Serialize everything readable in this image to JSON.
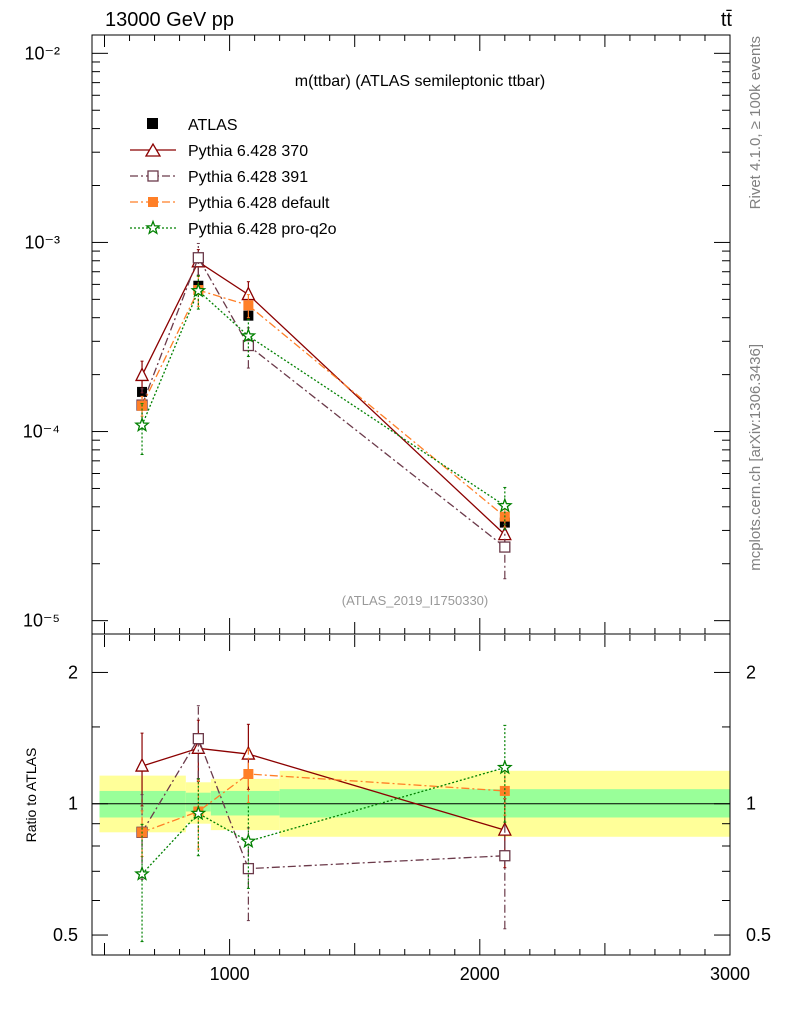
{
  "header": {
    "left": "13000 GeV pp",
    "right": "tt̄"
  },
  "side_labels": {
    "rivet": "Rivet 4.1.0, ≥ 100k events",
    "mcplots": "mcplots.cern.ch [arXiv:1306.3436]"
  },
  "colors": {
    "atlas": "#000000",
    "p370": "#8b0000",
    "p391": "#6b3a4a",
    "pdefault": "#ff7f27",
    "pq2o": "#008000",
    "band_outer": "#ffff99",
    "band_inner": "#99ff99"
  },
  "chart_data": [
    {
      "type": "scatter",
      "panel": "main",
      "title": "m(ttbar) (ATLAS semileptonic ttbar)",
      "analysis_tag": "(ATLAS_2019_I1750330)",
      "xlim": [
        450,
        3000
      ],
      "ylim": [
        8.5e-06,
        0.0125
      ],
      "yscale": "log",
      "y_tick_labels": [
        "10⁻⁵",
        "10⁻⁴",
        "10⁻³",
        "10⁻²"
      ],
      "legend": [
        "ATLAS",
        "Pythia 6.428 370",
        "Pythia 6.428 391",
        "Pythia 6.428 default",
        "Pythia 6.428 pro-q2o"
      ],
      "series": [
        {
          "name": "ATLAS",
          "x": [
            650,
            875,
            1075,
            2100
          ],
          "y": [
            0.000162,
            0.00059,
            0.00041,
            3.3e-05
          ]
        },
        {
          "name": "Pythia 6.428 370",
          "x": [
            650,
            875,
            1075,
            2100
          ],
          "y": [
            0.000198,
            0.00079,
            0.00053,
            2.85e-05
          ],
          "err": [
            0.19,
            0.16,
            0.17,
            0.18
          ]
        },
        {
          "name": "Pythia 6.428 391",
          "x": [
            650,
            875,
            1075,
            2100
          ],
          "y": [
            0.000138,
            0.00083,
            0.000285,
            2.45e-05
          ],
          "err": [
            0.22,
            0.19,
            0.24,
            0.32
          ]
        },
        {
          "name": "Pythia 6.428 default",
          "x": [
            650,
            875,
            1075,
            2100
          ],
          "y": [
            0.000137,
            0.00056,
            0.000465,
            3.55e-05
          ],
          "err": [
            0.12,
            0.18,
            0.14,
            0.12
          ]
        },
        {
          "name": "Pythia 6.428 pro-q2o",
          "x": [
            650,
            875,
            1075,
            2100
          ],
          "y": [
            0.000108,
            0.000555,
            0.00032,
            4.05e-05
          ],
          "err": [
            0.3,
            0.2,
            0.22,
            0.25
          ]
        }
      ]
    },
    {
      "type": "scatter",
      "panel": "ratio",
      "ylabel": "Ratio to ATLAS",
      "xlim": [
        450,
        3000
      ],
      "ylim": [
        0.45,
        2.45
      ],
      "yscale": "log",
      "x_tick_labels": [
        "1000",
        "2000",
        "3000"
      ],
      "y_tick_labels": [
        "0.5",
        "1",
        "2"
      ],
      "bands": [
        {
          "x0": 480,
          "x1": 825,
          "inner": [
            0.93,
            1.07
          ],
          "outer": [
            0.86,
            1.16
          ]
        },
        {
          "x0": 825,
          "x1": 925,
          "inner": [
            0.96,
            1.06
          ],
          "outer": [
            0.9,
            1.12
          ]
        },
        {
          "x0": 925,
          "x1": 1200,
          "inner": [
            0.94,
            1.07
          ],
          "outer": [
            0.87,
            1.14
          ]
        },
        {
          "x0": 1200,
          "x1": 3000,
          "inner": [
            0.93,
            1.08
          ],
          "outer": [
            0.84,
            1.19
          ]
        }
      ],
      "series": [
        {
          "name": "Pythia 6.428 370",
          "x": [
            650,
            875,
            1075,
            2100
          ],
          "y": [
            1.22,
            1.34,
            1.3,
            0.87
          ],
          "err": [
            0.19,
            0.16,
            0.17,
            0.18
          ]
        },
        {
          "name": "Pythia 6.428 391",
          "x": [
            650,
            875,
            1075,
            2100
          ],
          "y": [
            0.86,
            1.41,
            0.71,
            0.76
          ],
          "err": [
            0.22,
            0.19,
            0.24,
            0.32
          ]
        },
        {
          "name": "Pythia 6.428 default",
          "x": [
            650,
            875,
            1075,
            2100
          ],
          "y": [
            0.86,
            0.96,
            1.17,
            1.07
          ],
          "err": [
            0.12,
            0.18,
            0.14,
            0.12
          ]
        },
        {
          "name": "Pythia 6.428 pro-q2o",
          "x": [
            650,
            875,
            1075,
            2100
          ],
          "y": [
            0.69,
            0.95,
            0.82,
            1.21
          ],
          "err": [
            0.3,
            0.2,
            0.22,
            0.25
          ]
        }
      ]
    }
  ]
}
